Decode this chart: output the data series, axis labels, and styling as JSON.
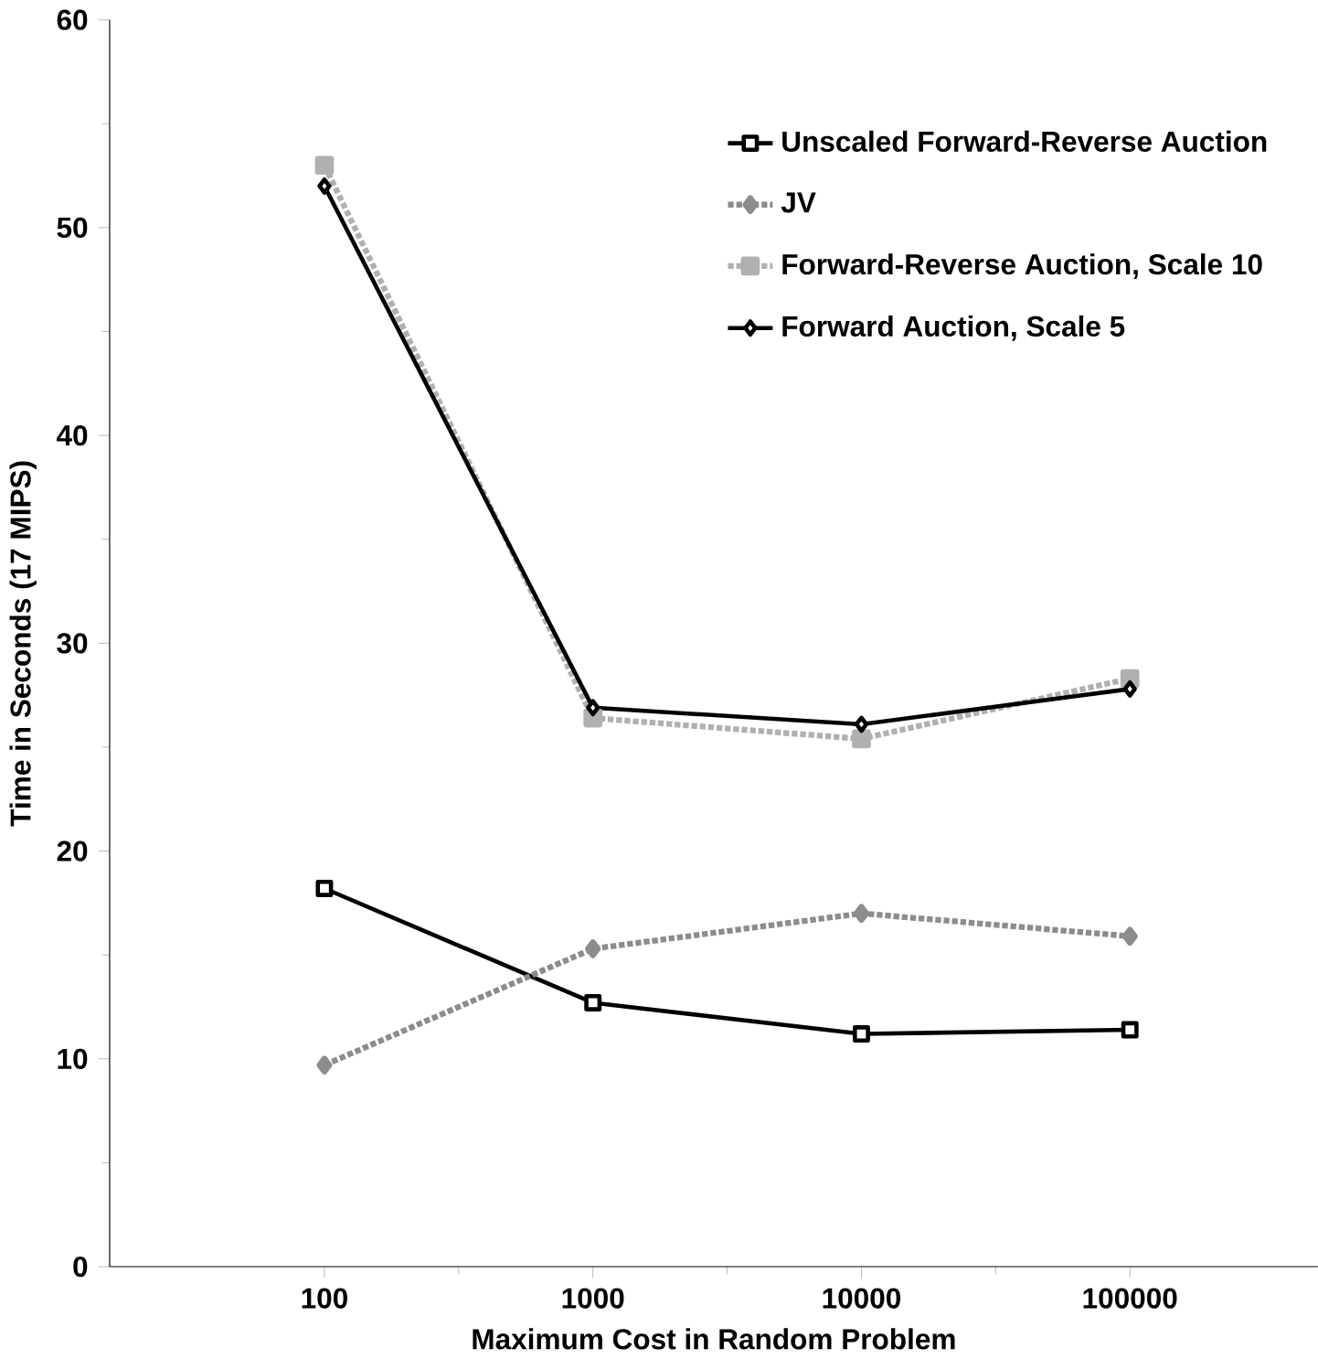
{
  "chart_data": {
    "type": "line",
    "xlabel": "Maximum Cost in Random Problem",
    "ylabel": "Time in Seconds (17 MIPS)",
    "categories": [
      "100",
      "1000",
      "10000",
      "100000"
    ],
    "ylim": [
      0,
      60
    ],
    "yticks": [
      0,
      10,
      20,
      30,
      40,
      50,
      60
    ],
    "legend": "top right",
    "series": [
      {
        "name": "Unscaled Forward-Reverse Auction",
        "color": "#000000",
        "marker": "square",
        "line_style": "solid",
        "values": [
          18.2,
          12.7,
          11.2,
          11.4
        ]
      },
      {
        "name": "JV",
        "color": "#8c8c8c",
        "marker": "diamond",
        "line_style": "dotted",
        "values": [
          9.7,
          15.3,
          17.0,
          15.9
        ]
      },
      {
        "name": "Forward-Reverse Auction, Scale 10",
        "color": "#b0b0b0",
        "marker": "square",
        "line_style": "dotted",
        "values": [
          53,
          26.4,
          25.4,
          28.3
        ]
      },
      {
        "name": "Forward Auction, Scale 5",
        "color": "#000000",
        "marker": "diamond",
        "line_style": "solid",
        "values": [
          52,
          26.9,
          26.1,
          27.8
        ]
      }
    ]
  }
}
